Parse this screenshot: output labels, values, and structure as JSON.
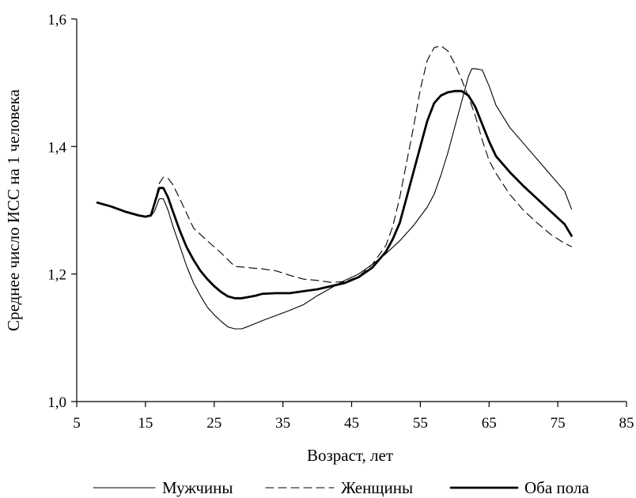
{
  "chart_data": {
    "type": "line",
    "xlabel": "Возраст, лет",
    "ylabel": "Среднее число ИСС на 1 человека",
    "xlim": [
      5,
      85
    ],
    "ylim": [
      1.0,
      1.6
    ],
    "x_ticks": [
      5,
      15,
      25,
      35,
      45,
      55,
      65,
      75,
      85
    ],
    "x_tick_labels": [
      "5",
      "15",
      "25",
      "35",
      "45",
      "55",
      "65",
      "75",
      "85"
    ],
    "y_ticks": [
      1.0,
      1.2,
      1.4,
      1.6
    ],
    "y_tick_labels": [
      "1,0",
      "1,2",
      "1,4",
      "1,6"
    ],
    "legend_position": "bottom",
    "series": [
      {
        "name": "Мужчины",
        "style": "solid-thin",
        "x": [
          8,
          10,
          12,
          14,
          15,
          15.8,
          16.3,
          17,
          17.6,
          18.3,
          19,
          20,
          21,
          22,
          23,
          24,
          25,
          26,
          27,
          28,
          29,
          30,
          32,
          34,
          36,
          38,
          40,
          42,
          44,
          46,
          48,
          50,
          52,
          54,
          56,
          57,
          58,
          59,
          60,
          61,
          62,
          62.5,
          63,
          64,
          65,
          66,
          68,
          70,
          72,
          74,
          76,
          77
        ],
        "y": [
          1.312,
          1.306,
          1.298,
          1.292,
          1.29,
          1.291,
          1.298,
          1.318,
          1.318,
          1.3,
          1.275,
          1.244,
          1.212,
          1.186,
          1.166,
          1.148,
          1.136,
          1.126,
          1.117,
          1.114,
          1.114,
          1.118,
          1.127,
          1.135,
          1.143,
          1.152,
          1.166,
          1.178,
          1.19,
          1.2,
          1.215,
          1.232,
          1.252,
          1.276,
          1.305,
          1.325,
          1.355,
          1.39,
          1.43,
          1.47,
          1.51,
          1.522,
          1.522,
          1.52,
          1.495,
          1.465,
          1.43,
          1.405,
          1.38,
          1.355,
          1.33,
          1.302
        ]
      },
      {
        "name": "Женщины",
        "style": "dashed",
        "x": [
          8,
          10,
          12,
          14,
          15,
          15.8,
          16.3,
          17,
          17.6,
          18.3,
          19,
          20,
          22,
          24,
          26,
          28,
          30,
          32,
          34,
          36,
          38,
          40,
          42,
          44,
          46,
          48,
          50,
          51,
          52,
          53,
          54,
          55,
          56,
          57,
          58,
          59,
          60,
          61,
          62,
          63,
          64,
          65,
          66,
          68,
          70,
          72,
          74,
          76,
          77
        ],
        "y": [
          1.312,
          1.306,
          1.298,
          1.292,
          1.29,
          1.292,
          1.31,
          1.342,
          1.352,
          1.35,
          1.34,
          1.318,
          1.272,
          1.252,
          1.233,
          1.212,
          1.21,
          1.208,
          1.205,
          1.198,
          1.192,
          1.19,
          1.187,
          1.188,
          1.196,
          1.215,
          1.245,
          1.275,
          1.32,
          1.375,
          1.43,
          1.49,
          1.535,
          1.555,
          1.558,
          1.55,
          1.53,
          1.505,
          1.478,
          1.448,
          1.41,
          1.378,
          1.358,
          1.325,
          1.3,
          1.28,
          1.262,
          1.248,
          1.243
        ]
      },
      {
        "name": "Оба пола",
        "style": "solid-thick",
        "x": [
          8,
          10,
          12,
          14,
          15,
          15.8,
          16.3,
          17,
          17.6,
          18.3,
          19,
          20,
          21,
          22,
          23,
          24,
          25,
          26,
          27,
          28,
          29,
          30,
          31,
          32,
          34,
          36,
          38,
          40,
          42,
          44,
          46,
          48,
          50,
          51,
          52,
          53,
          54,
          55,
          56,
          57,
          58,
          59,
          60,
          61,
          62,
          63,
          64,
          65,
          66,
          68,
          70,
          72,
          74,
          76,
          77
        ],
        "y": [
          1.312,
          1.306,
          1.298,
          1.292,
          1.29,
          1.292,
          1.31,
          1.335,
          1.335,
          1.32,
          1.298,
          1.268,
          1.242,
          1.222,
          1.205,
          1.192,
          1.181,
          1.172,
          1.165,
          1.162,
          1.162,
          1.164,
          1.166,
          1.169,
          1.17,
          1.17,
          1.173,
          1.176,
          1.181,
          1.186,
          1.195,
          1.21,
          1.235,
          1.255,
          1.28,
          1.32,
          1.36,
          1.4,
          1.44,
          1.468,
          1.48,
          1.485,
          1.487,
          1.487,
          1.48,
          1.462,
          1.435,
          1.408,
          1.385,
          1.36,
          1.338,
          1.318,
          1.298,
          1.278,
          1.26
        ]
      }
    ]
  }
}
